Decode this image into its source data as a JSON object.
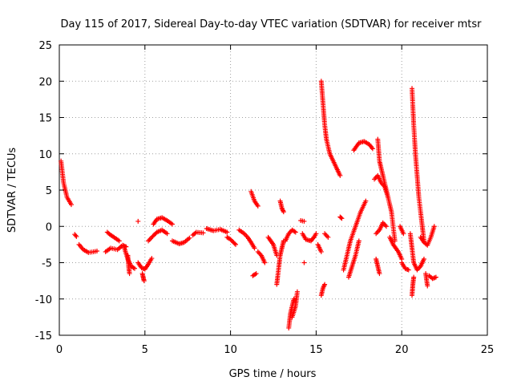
{
  "chart_data": {
    "type": "scatter",
    "title": "Day 115 of 2017, Sidereal Day-to-day VTEC variation (SDTVAR) for receiver mtsr",
    "xlabel": "GPS time / hours",
    "ylabel": "SDTVAR / TECUs",
    "xlim": [
      0,
      25
    ],
    "ylim": [
      -15,
      25
    ],
    "xticks": [
      0,
      5,
      10,
      15,
      20,
      25
    ],
    "yticks": [
      -15,
      -10,
      -5,
      0,
      5,
      10,
      15,
      20,
      25
    ],
    "grid": true,
    "marker": "+",
    "color": "#ff0000",
    "segments": [
      {
        "x": [
          0.1,
          0.25,
          0.45,
          0.7
        ],
        "y": [
          9.0,
          6.0,
          4.0,
          3.0
        ]
      },
      {
        "x": [
          0.9,
          1.0
        ],
        "y": [
          -1.1,
          -1.4
        ]
      },
      {
        "x": [
          1.15,
          1.4,
          1.7,
          2.0,
          2.2
        ],
        "y": [
          -2.5,
          -3.2,
          -3.6,
          -3.5,
          -3.4
        ]
      },
      {
        "x": [
          2.7,
          3.0,
          3.4,
          3.7,
          3.9
        ],
        "y": [
          -3.5,
          -3.0,
          -3.2,
          -2.6,
          -2.8
        ]
      },
      {
        "x": [
          2.8,
          3.0,
          3.2,
          3.5
        ],
        "y": [
          -0.8,
          -1.2,
          -1.5,
          -2.0
        ]
      },
      {
        "x": [
          3.8,
          4.0,
          4.2,
          4.4
        ],
        "y": [
          -3.0,
          -4.5,
          -5.5,
          -5.8
        ]
      },
      {
        "x": [
          4.0,
          4.05,
          4.1
        ],
        "y": [
          -4.0,
          -5.5,
          -6.5
        ]
      },
      {
        "x": [
          4.6,
          4.8,
          5.0,
          5.2,
          5.4
        ],
        "y": [
          -5.0,
          -5.7,
          -5.9,
          -5.2,
          -4.4
        ]
      },
      {
        "x": [
          4.85,
          4.9,
          4.95
        ],
        "y": [
          -6.5,
          -7.0,
          -7.5
        ]
      },
      {
        "x": [
          4.6
        ],
        "y": [
          0.7
        ]
      },
      {
        "x": [
          5.2,
          5.4,
          5.7,
          6.0,
          6.3
        ],
        "y": [
          -2.0,
          -1.5,
          -0.8,
          -0.5,
          -1.0
        ]
      },
      {
        "x": [
          5.5,
          5.7,
          6.0,
          6.3,
          6.6
        ],
        "y": [
          0.3,
          1.0,
          1.2,
          0.8,
          0.3
        ]
      },
      {
        "x": [
          6.6,
          7.0,
          7.3,
          7.6
        ],
        "y": [
          -2.0,
          -2.4,
          -2.2,
          -1.6
        ]
      },
      {
        "x": [
          7.8,
          8.0,
          8.4
        ],
        "y": [
          -1.2,
          -0.8,
          -0.9
        ]
      },
      {
        "x": [
          8.6,
          9.0,
          9.4,
          9.8
        ],
        "y": [
          -0.3,
          -0.6,
          -0.4,
          -0.8
        ]
      },
      {
        "x": [
          9.8,
          10.0,
          10.3
        ],
        "y": [
          -1.5,
          -1.8,
          -2.5
        ]
      },
      {
        "x": [
          10.5,
          10.8,
          11.0,
          11.2,
          11.4
        ],
        "y": [
          -0.5,
          -1.0,
          -1.5,
          -2.2,
          -3.0
        ]
      },
      {
        "x": [
          11.2,
          11.4,
          11.6
        ],
        "y": [
          4.8,
          3.5,
          2.8
        ]
      },
      {
        "x": [
          11.6,
          11.8,
          12.0
        ],
        "y": [
          -3.5,
          -4.0,
          -5.0
        ]
      },
      {
        "x": [
          11.3,
          11.5
        ],
        "y": [
          -6.8,
          -6.5
        ]
      },
      {
        "x": [
          12.2,
          12.5,
          12.7
        ],
        "y": [
          -1.5,
          -2.5,
          -4.0
        ]
      },
      {
        "x": [
          12.7,
          12.8,
          12.9,
          13.0,
          13.1
        ],
        "y": [
          -8.0,
          -6.0,
          -4.0,
          -3.0,
          -2.0
        ]
      },
      {
        "x": [
          12.9,
          13.0,
          13.1
        ],
        "y": [
          3.5,
          2.5,
          2.0
        ]
      },
      {
        "x": [
          13.2,
          13.4,
          13.6,
          13.8
        ],
        "y": [
          -2.0,
          -1.0,
          -0.5,
          -0.8
        ]
      },
      {
        "x": [
          13.4,
          13.5,
          13.6,
          13.7
        ],
        "y": [
          -14.0,
          -12.0,
          -11.0,
          -10.0
        ]
      },
      {
        "x": [
          13.6,
          13.8,
          13.9
        ],
        "y": [
          -12.5,
          -11.0,
          -9.0
        ]
      },
      {
        "x": [
          14.1,
          14.3
        ],
        "y": [
          0.8,
          0.7
        ]
      },
      {
        "x": [
          14.2,
          14.4,
          14.7,
          14.9,
          15.0
        ],
        "y": [
          -1.0,
          -1.8,
          -2.0,
          -1.4,
          -1.0
        ]
      },
      {
        "x": [
          14.3
        ],
        "y": [
          -5.0
        ]
      },
      {
        "x": [
          15.1,
          15.3
        ],
        "y": [
          -2.5,
          -3.5
        ]
      },
      {
        "x": [
          15.3,
          15.4,
          15.5,
          15.6,
          15.8,
          16.0,
          16.4
        ],
        "y": [
          20.0,
          17.0,
          14.0,
          12.0,
          10.0,
          9.0,
          7.0
        ]
      },
      {
        "x": [
          15.3,
          15.4,
          15.5
        ],
        "y": [
          -9.5,
          -8.5,
          -8.0
        ]
      },
      {
        "x": [
          15.5,
          15.7
        ],
        "y": [
          -1.0,
          -1.5
        ]
      },
      {
        "x": [
          16.4,
          16.5
        ],
        "y": [
          1.3,
          1.1
        ]
      },
      {
        "x": [
          16.6,
          16.8,
          17.0,
          17.3,
          17.6,
          17.9
        ],
        "y": [
          -6.0,
          -4.0,
          -2.0,
          0.0,
          2.0,
          3.5
        ]
      },
      {
        "x": [
          16.9,
          17.1,
          17.3,
          17.5
        ],
        "y": [
          -7.0,
          -5.5,
          -4.0,
          -2.0
        ]
      },
      {
        "x": [
          17.2,
          17.5,
          17.8,
          18.1,
          18.3
        ],
        "y": [
          10.5,
          11.5,
          11.7,
          11.3,
          10.7
        ]
      },
      {
        "x": [
          18.5,
          18.6,
          18.7
        ],
        "y": [
          -4.5,
          -5.5,
          -6.5
        ]
      },
      {
        "x": [
          18.5,
          18.7,
          18.9,
          19.1
        ],
        "y": [
          -1.0,
          -0.5,
          0.5,
          0.0
        ]
      },
      {
        "x": [
          18.6,
          18.7,
          18.8,
          19.0,
          19.2,
          19.4,
          19.6
        ],
        "y": [
          12.0,
          9.0,
          8.0,
          6.0,
          4.0,
          2.0,
          -2.0
        ]
      },
      {
        "x": [
          18.4,
          18.6,
          18.8,
          19.0,
          19.2
        ],
        "y": [
          6.5,
          7.0,
          6.0,
          5.5,
          4.0
        ]
      },
      {
        "x": [
          19.3,
          19.5,
          19.8,
          20.0
        ],
        "y": [
          -1.5,
          -2.5,
          -3.5,
          -4.5
        ]
      },
      {
        "x": [
          20.0,
          20.2,
          20.4
        ],
        "y": [
          -5.0,
          -5.8,
          -6.0
        ]
      },
      {
        "x": [
          19.9,
          20.1
        ],
        "y": [
          0.0,
          -1.0
        ]
      },
      {
        "x": [
          20.5,
          20.6,
          20.7,
          20.9,
          21.1,
          21.3
        ],
        "y": [
          -1.0,
          -3.0,
          -5.0,
          -6.0,
          -5.5,
          -4.5
        ]
      },
      {
        "x": [
          20.6,
          20.65,
          20.7
        ],
        "y": [
          -9.5,
          -8.0,
          -7.0
        ]
      },
      {
        "x": [
          20.6,
          20.7,
          20.8,
          20.9,
          21.0,
          21.2,
          21.3
        ],
        "y": [
          19.0,
          14.0,
          10.0,
          7.0,
          4.0,
          0.0,
          -2.0
        ]
      },
      {
        "x": [
          21.1,
          21.3,
          21.5,
          21.7,
          21.9
        ],
        "y": [
          -1.5,
          -2.2,
          -2.6,
          -1.5,
          0.0
        ]
      },
      {
        "x": [
          21.4,
          21.5
        ],
        "y": [
          -6.5,
          -8.2
        ]
      },
      {
        "x": [
          21.6,
          21.8,
          22.0
        ],
        "y": [
          -6.8,
          -7.2,
          -7.0
        ]
      }
    ]
  }
}
